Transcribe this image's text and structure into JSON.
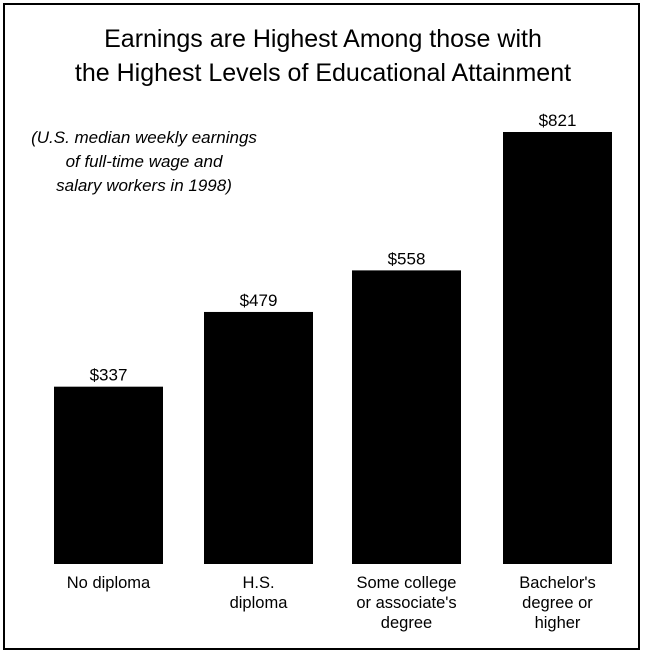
{
  "chart_data": {
    "type": "bar",
    "title_lines": [
      "Earnings are Highest Among those with",
      "the Highest Levels of Educational Attainment"
    ],
    "subtitle_lines": [
      "(U.S. median weekly earnings",
      "of full-time wage and",
      "salary workers in 1998)"
    ],
    "categories": [
      [
        "No diploma"
      ],
      [
        "H.S.",
        "diploma"
      ],
      [
        "Some college",
        "or associate's",
        "degree"
      ],
      [
        "Bachelor's",
        "degree or",
        "higher"
      ]
    ],
    "values": [
      337,
      479,
      558,
      821
    ],
    "value_labels": [
      "$337",
      "$479",
      "$558",
      "$821"
    ],
    "ylim": [
      0,
      821
    ],
    "grid": false,
    "legend": false,
    "bar_color": "#000000"
  }
}
